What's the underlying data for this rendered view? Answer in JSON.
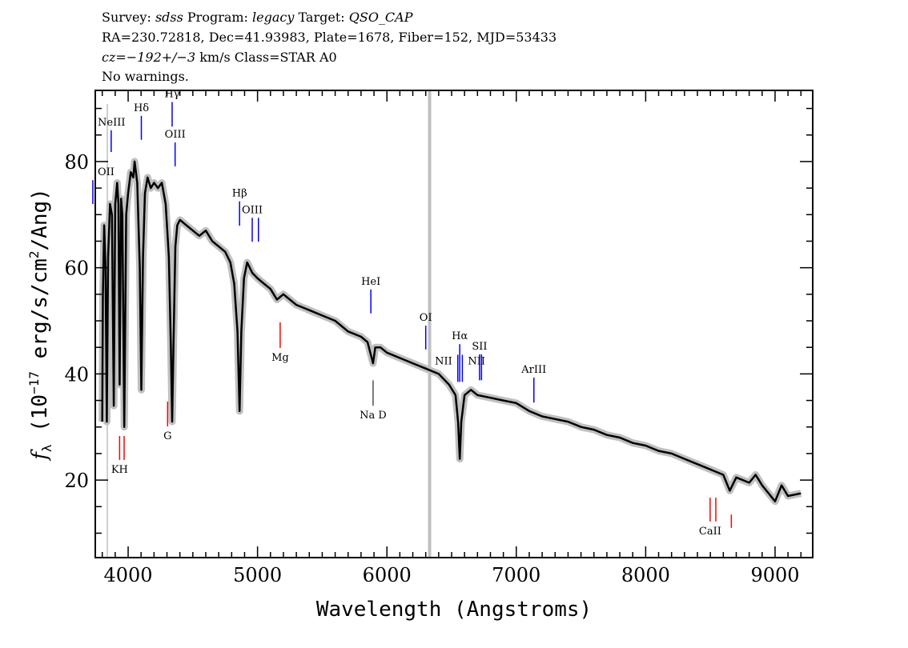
{
  "header": {
    "survey_label": "Survey: ",
    "survey": "sdss",
    "program_label": " Program: ",
    "program": "legacy",
    "target_label": " Target: ",
    "target": "QSO_CAP",
    "line2": "RA=230.72818, Dec=41.93983, Plate=1678, Fiber=152, MJD=53433",
    "cz": "cz=−192+/−3",
    "cz_rest": " km/s Class=STAR A0",
    "warnings": "No warnings."
  },
  "chart_data": {
    "type": "line",
    "xlabel": "Wavelength (Angstroms)",
    "ylabel": "f_λ (10^-17 erg/s/cm^2/Ang)",
    "ylabel_parts": {
      "f": "f",
      "sub": "λ",
      "a": " (10",
      "exp": "−17",
      "b": " erg/s/cm",
      "exp2": "2",
      "c": "/Ang)"
    },
    "xlim": [
      3746,
      9291
    ],
    "ylim": [
      5.4,
      93.4
    ],
    "xticks": [
      4000,
      5000,
      6000,
      7000,
      8000,
      9000
    ],
    "xtick_labels": [
      "4000",
      "5000",
      "6000",
      "7000",
      "8000",
      "9000"
    ],
    "yticks": [
      20,
      40,
      60,
      80
    ],
    "ytick_labels": [
      "20",
      "40",
      "60",
      "80"
    ],
    "grid": false,
    "colors": {
      "spectrum": "#000000",
      "error": "#c0c0c0",
      "emission": "#0000ff",
      "absorption": "#ff0000",
      "sky": "#c0c0c0"
    },
    "masked_wavelength": 6330,
    "series": [
      {
        "values": [
          [
            3800,
            31
          ],
          [
            3805,
            55
          ],
          [
            3815,
            68
          ],
          [
            3825,
            60
          ],
          [
            3835,
            31
          ],
          [
            3845,
            62
          ],
          [
            3860,
            72
          ],
          [
            3875,
            70
          ],
          [
            3889,
            34
          ],
          [
            3900,
            72
          ],
          [
            3915,
            76
          ],
          [
            3925,
            72
          ],
          [
            3934,
            38
          ],
          [
            3945,
            73
          ],
          [
            3955,
            70
          ],
          [
            3970,
            30
          ],
          [
            3985,
            70
          ],
          [
            4000,
            74
          ],
          [
            4020,
            78
          ],
          [
            4040,
            77
          ],
          [
            4050,
            80
          ],
          [
            4070,
            76
          ],
          [
            4090,
            60
          ],
          [
            4102,
            37
          ],
          [
            4115,
            62
          ],
          [
            4130,
            74
          ],
          [
            4150,
            77
          ],
          [
            4175,
            75
          ],
          [
            4200,
            76
          ],
          [
            4230,
            75
          ],
          [
            4260,
            76
          ],
          [
            4290,
            72
          ],
          [
            4315,
            62
          ],
          [
            4330,
            45
          ],
          [
            4340,
            31
          ],
          [
            4350,
            45
          ],
          [
            4365,
            64
          ],
          [
            4380,
            68
          ],
          [
            4400,
            69
          ],
          [
            4450,
            68
          ],
          [
            4500,
            67
          ],
          [
            4550,
            66
          ],
          [
            4600,
            67
          ],
          [
            4650,
            65
          ],
          [
            4700,
            64
          ],
          [
            4750,
            63
          ],
          [
            4790,
            61
          ],
          [
            4820,
            57
          ],
          [
            4845,
            48
          ],
          [
            4861,
            33
          ],
          [
            4875,
            48
          ],
          [
            4895,
            58
          ],
          [
            4920,
            61
          ],
          [
            4960,
            59
          ],
          [
            5000,
            58
          ],
          [
            5050,
            57
          ],
          [
            5100,
            56
          ],
          [
            5150,
            54
          ],
          [
            5200,
            55
          ],
          [
            5250,
            54
          ],
          [
            5300,
            53
          ],
          [
            5400,
            52
          ],
          [
            5500,
            51
          ],
          [
            5600,
            50
          ],
          [
            5700,
            48
          ],
          [
            5800,
            47
          ],
          [
            5850,
            46
          ],
          [
            5893,
            42
          ],
          [
            5910,
            45
          ],
          [
            5950,
            45
          ],
          [
            6000,
            44
          ],
          [
            6100,
            43
          ],
          [
            6200,
            42
          ],
          [
            6300,
            41
          ],
          [
            6400,
            40
          ],
          [
            6480,
            38
          ],
          [
            6530,
            36
          ],
          [
            6550,
            31
          ],
          [
            6563,
            24
          ],
          [
            6575,
            31
          ],
          [
            6600,
            36
          ],
          [
            6650,
            37
          ],
          [
            6700,
            36
          ],
          [
            6800,
            35.5
          ],
          [
            6900,
            35
          ],
          [
            7000,
            34.5
          ],
          [
            7100,
            33
          ],
          [
            7200,
            32
          ],
          [
            7300,
            31.5
          ],
          [
            7400,
            31
          ],
          [
            7500,
            30
          ],
          [
            7600,
            29.5
          ],
          [
            7700,
            28.5
          ],
          [
            7800,
            28
          ],
          [
            7900,
            27
          ],
          [
            8000,
            26.5
          ],
          [
            8100,
            25.5
          ],
          [
            8200,
            25
          ],
          [
            8300,
            24
          ],
          [
            8400,
            23
          ],
          [
            8500,
            22
          ],
          [
            8600,
            21
          ],
          [
            8650,
            18
          ],
          [
            8700,
            20.5
          ],
          [
            8800,
            19.5
          ],
          [
            8850,
            21
          ],
          [
            8900,
            19
          ],
          [
            9000,
            16
          ],
          [
            9050,
            19
          ],
          [
            9100,
            17
          ],
          [
            9200,
            17.5
          ]
        ]
      }
    ],
    "line_markers": [
      {
        "label": "OII",
        "waves": [
          3727
        ],
        "flux": [
          76.5,
          72.0
        ],
        "type": "emission",
        "side": "above"
      },
      {
        "label": "NeIII",
        "waves": [
          3869
        ],
        "flux": [
          85.9,
          81.8
        ],
        "type": "emission",
        "side": "above"
      },
      {
        "label": "Hδ",
        "waves": [
          4102
        ],
        "flux": [
          88.6,
          84.1
        ],
        "type": "emission",
        "side": "above"
      },
      {
        "label": "Hγ",
        "waves": [
          4340
        ],
        "flux": [
          91.2,
          86.6
        ],
        "type": "emission",
        "side": "above"
      },
      {
        "label": "OIII",
        "waves": [
          4363
        ],
        "flux": [
          83.6,
          79.1
        ],
        "type": "emission",
        "side": "above"
      },
      {
        "label": "Hβ",
        "waves": [
          4861
        ],
        "flux": [
          72.5,
          67.9
        ],
        "type": "emission",
        "side": "above"
      },
      {
        "label": "OIII",
        "waves": [
          4959,
          5007
        ],
        "flux": [
          69.4,
          64.9
        ],
        "type": "emission",
        "side": "above"
      },
      {
        "label": "Mg",
        "waves": [
          5175
        ],
        "flux": [
          49.7,
          44.9
        ],
        "type": "absorption",
        "side": "below"
      },
      {
        "label": "HeI",
        "waves": [
          5876
        ],
        "flux": [
          55.9,
          51.4
        ],
        "type": "emission",
        "side": "above"
      },
      {
        "label": "Na D",
        "waves": [
          5893
        ],
        "flux": [
          38.8,
          34.0
        ],
        "type": "sky",
        "side": "below"
      },
      {
        "label": "OI",
        "waves": [
          6300
        ],
        "flux": [
          49.1,
          44.6
        ],
        "type": "emission",
        "side": "above"
      },
      {
        "label": "NII",
        "waves": [
          6548
        ],
        "flux": [
          43.6,
          38.5
        ],
        "type": "emission",
        "side": "left"
      },
      {
        "label": "Hα",
        "waves": [
          6563
        ],
        "flux": [
          45.6,
          38.5
        ],
        "type": "emission",
        "side": "above"
      },
      {
        "label": "NII",
        "waves": [
          6583
        ],
        "flux": [
          43.6,
          38.5
        ],
        "type": "emission",
        "side": "right"
      },
      {
        "label": "SII",
        "waves": [
          6716,
          6731
        ],
        "flux": [
          43.7,
          38.8
        ],
        "type": "emission",
        "side": "above"
      },
      {
        "label": "ArIII",
        "waves": [
          7136
        ],
        "flux": [
          39.3,
          34.6
        ],
        "type": "emission",
        "side": "above"
      },
      {
        "label": "KH",
        "waves": [
          3934,
          3969
        ],
        "flux": [
          28.3,
          23.8
        ],
        "type": "absorption",
        "side": "below"
      },
      {
        "label": "G",
        "waves": [
          4305
        ],
        "flux": [
          34.8,
          30.1
        ],
        "type": "absorption",
        "side": "below"
      },
      {
        "label": "CaII",
        "waves": [
          8498,
          8542
        ],
        "flux": [
          16.7,
          12.2
        ],
        "type": "absorption",
        "side": "below"
      },
      {
        "label": "",
        "waves": [
          8662
        ],
        "flux": [
          13.5,
          11.0
        ],
        "type": "absorption",
        "side": "below"
      }
    ]
  }
}
